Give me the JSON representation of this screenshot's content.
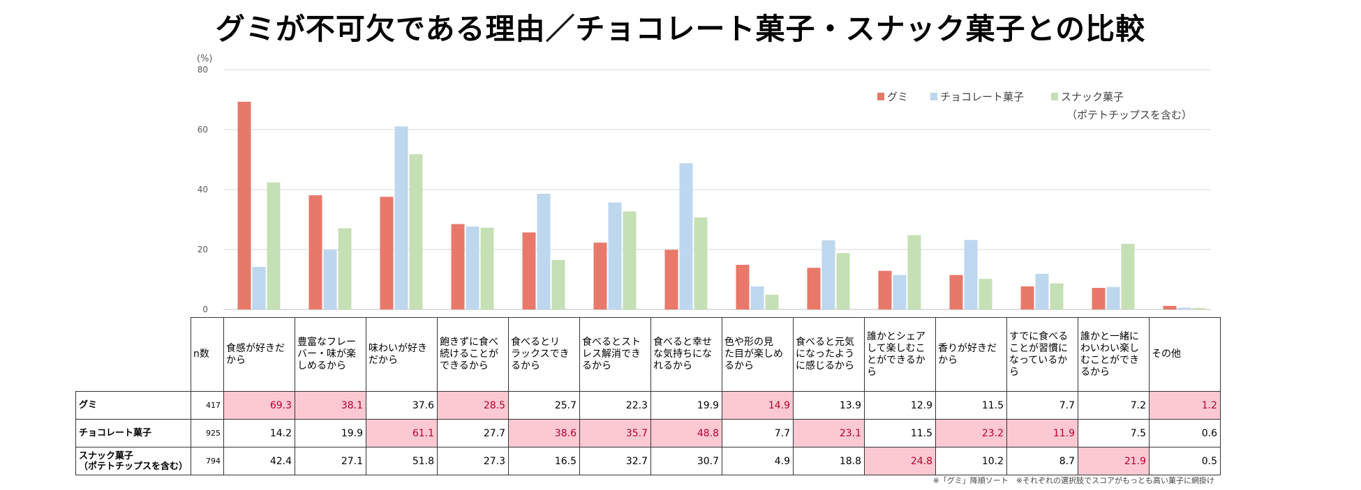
{
  "title": "グミが不可欠である理由／チョコレート菓子・スナック菓子との比較",
  "chart_data": {
    "type": "bar",
    "title": "グミが不可欠である理由／チョコレート菓子・スナック菓子との比較",
    "ylabel": "(%)",
    "ylim": [
      0,
      80
    ],
    "yticks": [
      0,
      20,
      40,
      60,
      80
    ],
    "grid": true,
    "legend_position": "top-right",
    "categories": [
      "食感が好きだから",
      "豊富なフレーバー・味が楽しめるから",
      "味わいが好きだから",
      "飽きずに食べ続けることができるから",
      "食べるとリラックスできるから",
      "食べるとストレス解消できるから",
      "食べると幸せな気持ちになれるから",
      "色や形の見た目が楽しめるから",
      "食べると元気になったように感じるから",
      "誰かとシェアして楽しむことができるから",
      "香りが好きだから",
      "すでに食べることが習慣になっているから",
      "誰かと一緒にわいわい楽しむことができるから",
      "その他"
    ],
    "series": [
      {
        "name": "グミ",
        "color": "#e8786a",
        "n": "417",
        "values": [
          69.3,
          38.1,
          37.6,
          28.5,
          25.7,
          22.3,
          19.9,
          14.9,
          13.9,
          12.9,
          11.5,
          7.7,
          7.2,
          1.2
        ]
      },
      {
        "name": "チョコレート菓子",
        "color": "#bdd7ee",
        "n": "925",
        "values": [
          14.2,
          19.9,
          61.1,
          27.7,
          38.6,
          35.7,
          48.8,
          7.7,
          23.1,
          11.5,
          23.2,
          11.9,
          7.5,
          0.6
        ]
      },
      {
        "name": "スナック菓子（ポテトチップスを含む）",
        "color": "#c5e0b4",
        "n": "794",
        "values": [
          42.4,
          27.1,
          51.8,
          27.3,
          16.5,
          32.7,
          30.7,
          4.9,
          18.8,
          24.8,
          10.2,
          8.7,
          21.9,
          0.5
        ]
      }
    ],
    "highlight_series_index": [
      0,
      0,
      1,
      0,
      1,
      1,
      1,
      0,
      1,
      2,
      1,
      1,
      2,
      0
    ]
  },
  "legend": {
    "items": [
      "グミ",
      "チョコレート菓子",
      "スナック菓子"
    ],
    "note": "（ポテトチップスを含む）"
  },
  "table": {
    "n_header": "n数",
    "col_headers": [
      [
        "食感が好きだ",
        "から"
      ],
      [
        "豊富なフレー",
        "バー・味が楽",
        "しめるから"
      ],
      [
        "味わいが好き",
        "だから"
      ],
      [
        "飽きずに食べ",
        "続けることが",
        "できるから"
      ],
      [
        "食べるとリ",
        "ラックスでき",
        "るから"
      ],
      [
        "食べるとスト",
        "レス解消でき",
        "るから"
      ],
      [
        "食べると幸せ",
        "な気持ちにな",
        "れるから"
      ],
      [
        "色や形の見",
        "た目が楽しめ",
        "るから"
      ],
      [
        "食べると元気",
        "になったよう",
        "に感じるから"
      ],
      [
        "誰かとシェア",
        "して楽しむこ",
        "とができるか",
        "ら"
      ],
      [
        "香りが好きだ",
        "から"
      ],
      [
        "すでに食べる",
        "ことが習慣に",
        "なっているか",
        "ら"
      ],
      [
        "誰かと一緒に",
        "わいわい楽し",
        "むことができ",
        "るから"
      ],
      [
        "その他"
      ]
    ],
    "row_labels": [
      [
        "グミ"
      ],
      [
        "チョコレート菓子"
      ],
      [
        "スナック菓子",
        "（ポテトチップスを含む）"
      ]
    ]
  },
  "footnote": "※「グミ」降順ソート　※それぞれの選択肢でスコアがもっとも高い菓子に網掛け"
}
